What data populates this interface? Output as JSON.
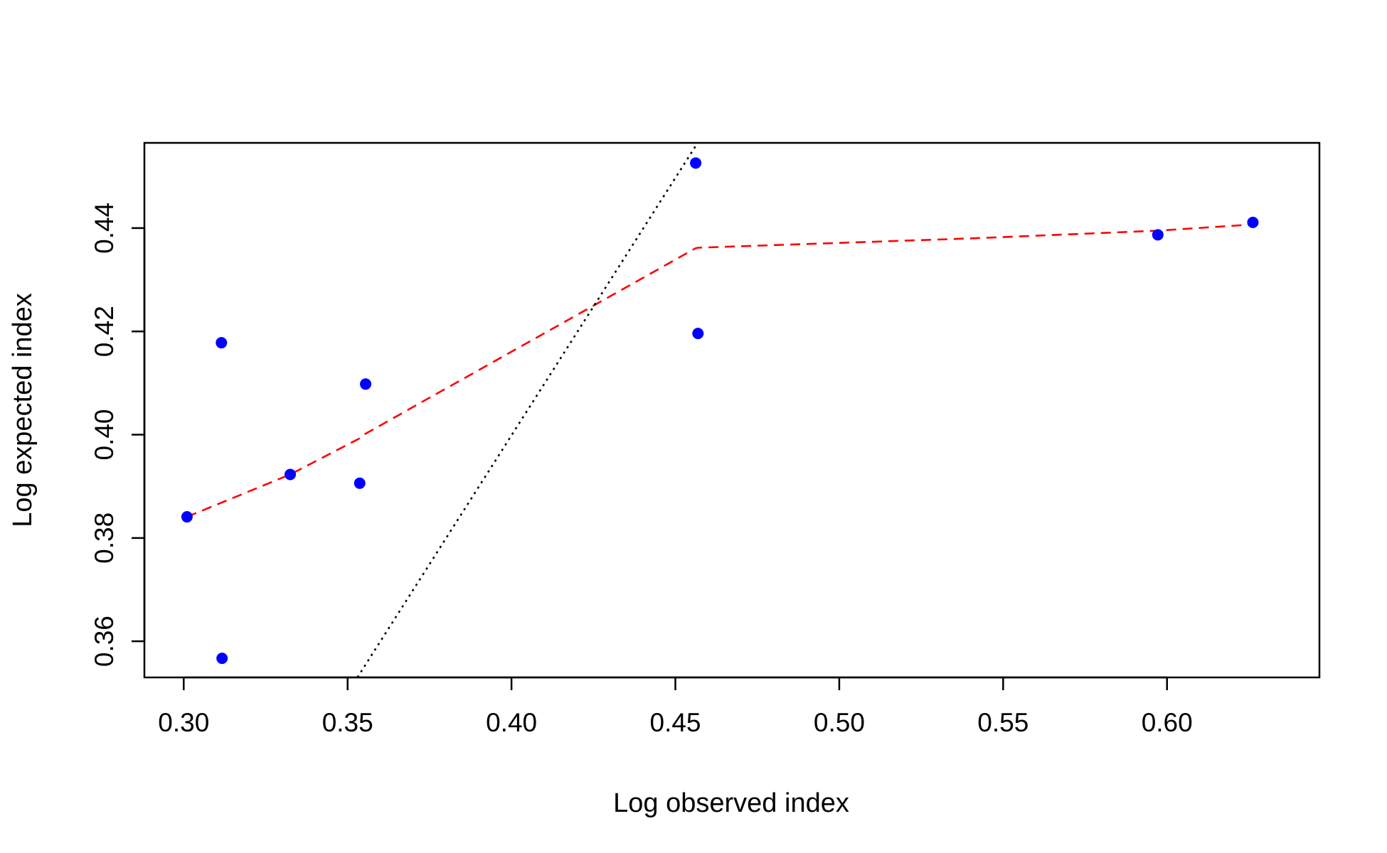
{
  "chart_data": {
    "type": "scatter",
    "title": "",
    "xlabel": "Log observed index",
    "ylabel": "Log expected index",
    "xlim": [
      0.288,
      0.6465
    ],
    "ylim": [
      0.353,
      0.4565
    ],
    "x_ticks": [
      0.3,
      0.35,
      0.4,
      0.45,
      0.5,
      0.55,
      0.6
    ],
    "x_tick_labels": [
      "0.30",
      "0.35",
      "0.40",
      "0.45",
      "0.50",
      "0.55",
      "0.60"
    ],
    "y_ticks": [
      0.36,
      0.38,
      0.4,
      0.42,
      0.44
    ],
    "y_tick_labels": [
      "0.36",
      "0.38",
      "0.40",
      "0.42",
      "0.44"
    ],
    "grid": false,
    "legend": "none",
    "points": {
      "color": "#0000ff",
      "x": [
        0.301,
        0.3115,
        0.3117,
        0.3325,
        0.3537,
        0.3555,
        0.4562,
        0.4569,
        0.5972,
        0.6262
      ],
      "y": [
        0.3841,
        0.4178,
        0.3567,
        0.3923,
        0.3906,
        0.4098,
        0.4526,
        0.4196,
        0.4387,
        0.4411
      ]
    },
    "lines": [
      {
        "style": "dashed",
        "color": "#ff0000",
        "x": [
          0.301,
          0.3325,
          0.3537,
          0.3555,
          0.4562,
          0.4569,
          0.54,
          0.5972,
          0.6262
        ],
        "y": [
          0.3841,
          0.3923,
          0.3993,
          0.4002,
          0.4361,
          0.4362,
          0.438,
          0.4395,
          0.4407
        ]
      },
      {
        "style": "dotted",
        "color": "#000000",
        "x": [
          0.353,
          0.4568
        ],
        "y": [
          0.353,
          0.4565
        ]
      }
    ]
  }
}
